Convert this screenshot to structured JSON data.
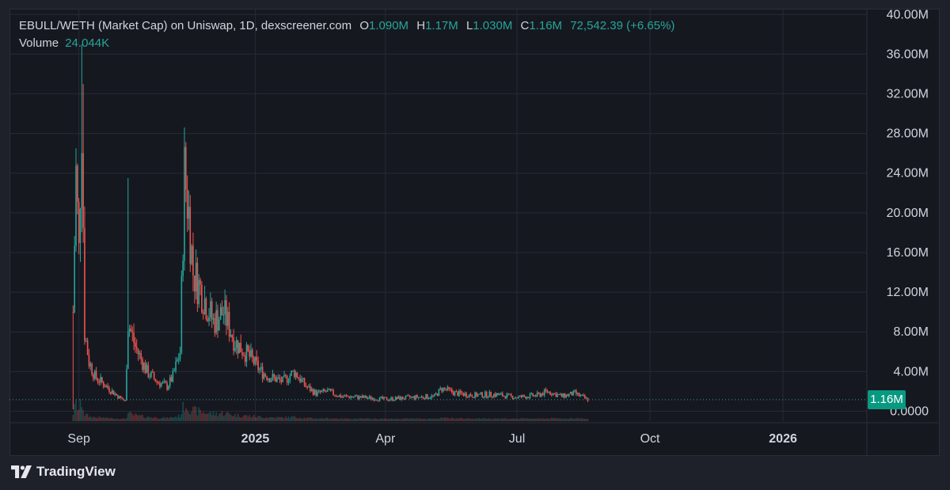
{
  "legend": {
    "title": "EBULL/WETH (Market Cap) on Uniswap, 1D, dexscreener.com",
    "open_key": "O",
    "open_value": "1.090M",
    "high_key": "H",
    "high_value": "1.17M",
    "low_key": "L",
    "low_value": "1.030M",
    "close_key": "C",
    "close_value": "1.16M",
    "change": "72,542.39 (+6.65%)",
    "volume_label": "Volume",
    "volume_value": "24.044K"
  },
  "last_price_label": "1.16M",
  "footer": {
    "brand": "TradingView",
    "logo_icon": "tradingview-logo-icon"
  },
  "colors": {
    "up": "#26a69a",
    "down": "#ef5350",
    "background": "#161820",
    "grid": "#262a35",
    "axis_text": "#d1d4dc",
    "price_tag": "#089981"
  },
  "chart_data": {
    "type": "candlestick",
    "y_unit": "M",
    "ylim": [
      -1.0,
      40.5
    ],
    "xlim": [
      "2024-07-15",
      "2026-02-28"
    ],
    "grid": true,
    "legend_position": "top-left",
    "y_ticks": [
      0,
      4,
      8,
      12,
      16,
      20,
      24,
      28,
      32,
      36,
      40
    ],
    "y_tick_labels": [
      "0.0000",
      "4.00M",
      "8.00M",
      "12.00M",
      "16.00M",
      "20.00M",
      "24.00M",
      "28.00M",
      "32.00M",
      "36.00M",
      "40.00M"
    ],
    "x_ticks": [
      {
        "date": "2024-09-01",
        "label": "Sep",
        "bold": false
      },
      {
        "date": "2025-01-01",
        "label": "2025",
        "bold": true
      },
      {
        "date": "2025-04-01",
        "label": "Apr",
        "bold": false
      },
      {
        "date": "2025-07-01",
        "label": "Jul",
        "bold": false
      },
      {
        "date": "2025-10-01",
        "label": "Oct",
        "bold": false
      },
      {
        "date": "2026-01-01",
        "label": "2026",
        "bold": true
      }
    ],
    "last_price": 1.16,
    "series_start": "2024-08-28",
    "series_end": "2025-08-19",
    "close_path": [
      [
        "2024-08-28",
        10.0
      ],
      [
        "2024-08-30",
        24.0
      ],
      [
        "2024-09-01",
        16.0
      ],
      [
        "2024-09-03",
        30.0
      ],
      [
        "2024-09-05",
        8.0
      ],
      [
        "2024-09-08",
        5.0
      ],
      [
        "2024-09-12",
        3.5
      ],
      [
        "2024-09-20",
        2.5
      ],
      [
        "2024-09-28",
        1.5
      ],
      [
        "2024-10-03",
        1.0
      ],
      [
        "2024-10-05",
        9.0
      ],
      [
        "2024-10-10",
        6.5
      ],
      [
        "2024-10-18",
        4.0
      ],
      [
        "2024-10-25",
        3.0
      ],
      [
        "2024-11-01",
        2.5
      ],
      [
        "2024-11-05",
        3.5
      ],
      [
        "2024-11-10",
        6.0
      ],
      [
        "2024-11-13",
        24.0
      ],
      [
        "2024-11-16",
        20.0
      ],
      [
        "2024-11-19",
        14.0
      ],
      [
        "2024-11-25",
        12.0
      ],
      [
        "2024-12-03",
        9.0
      ],
      [
        "2024-12-10",
        10.0
      ],
      [
        "2024-12-18",
        7.0
      ],
      [
        "2024-12-28",
        5.5
      ],
      [
        "2025-01-05",
        4.0
      ],
      [
        "2025-01-10",
        3.5
      ],
      [
        "2025-01-20",
        3.0
      ],
      [
        "2025-01-28",
        4.0
      ],
      [
        "2025-02-05",
        2.5
      ],
      [
        "2025-02-12",
        1.8
      ],
      [
        "2025-02-20",
        2.0
      ],
      [
        "2025-03-01",
        1.5
      ],
      [
        "2025-03-15",
        1.4
      ],
      [
        "2025-04-01",
        1.2
      ],
      [
        "2025-04-20",
        1.4
      ],
      [
        "2025-05-05",
        1.5
      ],
      [
        "2025-05-10",
        2.3
      ],
      [
        "2025-05-20",
        1.8
      ],
      [
        "2025-06-01",
        1.6
      ],
      [
        "2025-06-15",
        1.7
      ],
      [
        "2025-07-01",
        1.4
      ],
      [
        "2025-07-15",
        1.6
      ],
      [
        "2025-07-22",
        2.0
      ],
      [
        "2025-08-01",
        1.5
      ],
      [
        "2025-08-10",
        1.8
      ],
      [
        "2025-08-19",
        1.16
      ]
    ],
    "notable_highs": [
      [
        "2024-09-03",
        37.0
      ],
      [
        "2024-09-04",
        33.0
      ],
      [
        "2024-08-30",
        26.5
      ],
      [
        "2024-10-05",
        23.5
      ],
      [
        "2024-11-13",
        27.0
      ],
      [
        "2024-11-14",
        25.0
      ]
    ]
  }
}
